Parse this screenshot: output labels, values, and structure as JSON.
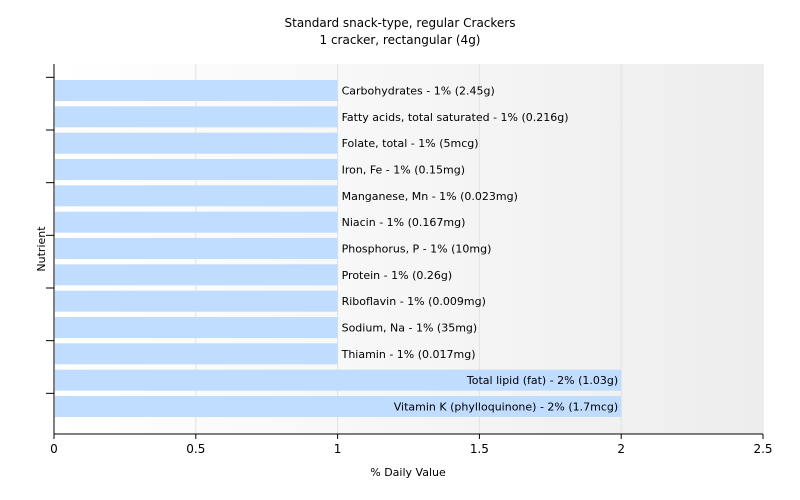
{
  "chart_data": {
    "type": "bar",
    "orientation": "horizontal",
    "title": "Standard snack-type, regular Crackers",
    "subtitle": "1 cracker, rectangular (4g)",
    "xlabel": "% Daily Value",
    "ylabel": "Nutrient",
    "xlim": [
      0,
      2.5
    ],
    "xticks": [
      "0",
      "0.5",
      "1",
      "1.5",
      "2",
      "2.5"
    ],
    "grid": "vertical",
    "bar_color": "#c0dcff",
    "categories": [
      "Carbohydrates",
      "Fatty acids, total saturated",
      "Folate, total",
      "Iron, Fe",
      "Manganese, Mn",
      "Niacin",
      "Phosphorus, P",
      "Protein",
      "Riboflavin",
      "Sodium, Na",
      "Thiamin",
      "Total lipid (fat)",
      "Vitamin K (phylloquinone)"
    ],
    "values": [
      1,
      1,
      1,
      1,
      1,
      1,
      1,
      1,
      1,
      1,
      1,
      2,
      2
    ],
    "labels": [
      "Carbohydrates - 1% (2.45g)",
      "Fatty acids, total saturated - 1% (0.216g)",
      "Folate, total - 1% (5mcg)",
      "Iron, Fe - 1% (0.15mg)",
      "Manganese, Mn - 1% (0.023mg)",
      "Niacin - 1% (0.167mg)",
      "Phosphorus, P - 1% (10mg)",
      "Protein - 1% (0.26g)",
      "Riboflavin - 1% (0.009mg)",
      "Sodium, Na - 1% (35mg)",
      "Thiamin - 1% (0.017mg)",
      "Total lipid (fat) - 2% (1.03g)",
      "Vitamin K (phylloquinone) - 2% (1.7mcg)"
    ]
  }
}
